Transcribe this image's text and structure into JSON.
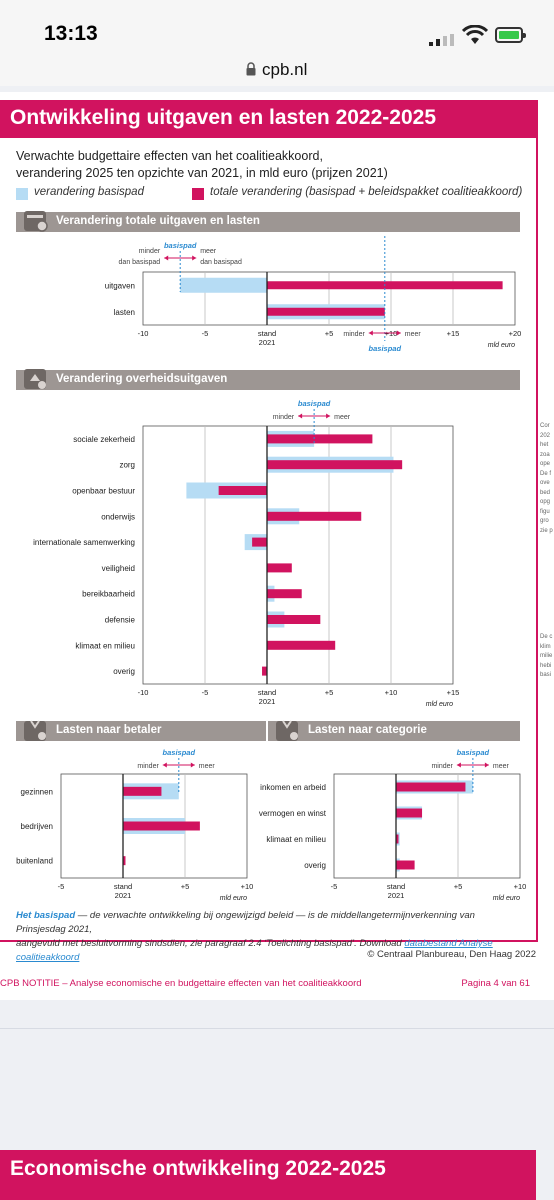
{
  "status_bar": {
    "time": "13:13"
  },
  "browser": {
    "url": "cpb.nl"
  },
  "doc": {
    "title": "Ontwikkeling uitgaven en lasten 2022-2025",
    "subtitle_line1": "Verwachte budgettaire effecten van het coalitieakkoord,",
    "subtitle_line2": "verandering 2025 ten opzichte van 2021, in mld euro (prijzen 2021)",
    "legend_basispad": "verandering basispad",
    "legend_totaal": "totale verandering (basispad + beleidspakket coalitieakkoord)",
    "colors": {
      "basispad": "#b6dcf4",
      "totaal": "#d1135f",
      "accent_blue": "#2a8ad0",
      "section_grey": "#9d9693"
    },
    "sections": {
      "s1": "Verandering totale uitgaven en lasten",
      "s2": "Verandering overheidsuitgaven",
      "s3": "Lasten naar betaler",
      "s4": "Lasten naar categorie"
    },
    "footnote_hl": "Het basispad",
    "footnote_text1": " — de verwachte ontwikkeling bij ongewijzigd beleid — is de middellangetermijnverkenning van Prinsjesdag 2021,",
    "footnote_text2": "aangevuld met besluitvorming sindsdien, zie paragraaf 2.4 ‘Toelichting basispad’. Download ",
    "footnote_link": "databestand Analyse coalitieakkoord",
    "copyright": "© Centraal Planbureau, Den Haag 2022",
    "footer_left": "CPB NOTITIE – Analyse economische en budgettaire effecten van het coalitieakkoord",
    "footer_right": "Pagina 4 van 61",
    "next_title": "Economische ontwikkeling 2022-2025",
    "side_text_1": [
      "Cor",
      "202",
      "het",
      "zoa",
      "ope",
      "De f",
      "ove",
      "bed",
      "opg",
      "figu",
      "gro",
      "zie p"
    ],
    "side_text_2": [
      "De c",
      "klim",
      "milie",
      "hebi",
      "basi"
    ]
  },
  "chart_labels": {
    "basispad": "basispad",
    "minder_dan": [
      "minder",
      "dan basispad"
    ],
    "meer_dan": [
      "meer",
      "dan basispad"
    ],
    "minder": "minder",
    "meer": "meer",
    "stand": [
      "stand",
      "2021"
    ],
    "unit": "mld euro"
  },
  "chart_data": [
    {
      "id": "totaal",
      "type": "bar",
      "orientation": "horizontal",
      "title": "Verandering totale uitgaven en lasten",
      "categories": [
        "uitgaven",
        "lasten"
      ],
      "series": [
        {
          "name": "verandering basispad",
          "values": [
            -7,
            9.5
          ]
        },
        {
          "name": "totale verandering (basispad + beleidspakket coalitieakkoord)",
          "values": [
            19,
            9.5
          ]
        }
      ],
      "xlim": [
        -10,
        20
      ],
      "xticks": [
        "-10",
        "-5",
        "stand 2021",
        "+5",
        "+10",
        "+15",
        "+20"
      ],
      "xlabel": "mld euro"
    },
    {
      "id": "overheidsuitgaven",
      "type": "bar",
      "orientation": "horizontal",
      "title": "Verandering overheidsuitgaven",
      "categories": [
        "sociale zekerheid",
        "zorg",
        "openbaar bestuur",
        "onderwijs",
        "internationale samenwerking",
        "veiligheid",
        "bereikbaarheid",
        "defensie",
        "klimaat en milieu",
        "overig"
      ],
      "series": [
        {
          "name": "verandering basispad",
          "values": [
            3.8,
            10.2,
            -6.5,
            2.6,
            -1.8,
            0,
            0.6,
            1.4,
            0,
            0
          ]
        },
        {
          "name": "totale verandering (basispad + beleidspakket coalitieakkoord)",
          "values": [
            8.5,
            10.9,
            -3.9,
            7.6,
            -1.2,
            2.0,
            2.8,
            4.3,
            5.5,
            -0.4
          ]
        }
      ],
      "xlim": [
        -10,
        15
      ],
      "xticks": [
        "-10",
        "-5",
        "stand 2021",
        "+5",
        "+10",
        "+15"
      ],
      "xlabel": "mld euro"
    },
    {
      "id": "betaler",
      "type": "bar",
      "orientation": "horizontal",
      "title": "Lasten naar betaler",
      "categories": [
        "gezinnen",
        "bedrijven",
        "buitenland"
      ],
      "series": [
        {
          "name": "verandering basispad",
          "values": [
            4.5,
            5.0,
            0
          ]
        },
        {
          "name": "totale verandering (basispad + beleidspakket coalitieakkoord)",
          "values": [
            3.1,
            6.2,
            0.2
          ]
        }
      ],
      "xlim": [
        -5,
        10
      ],
      "xticks": [
        "-5",
        "stand 2021",
        "+5",
        "+10"
      ],
      "xlabel": "mld euro"
    },
    {
      "id": "categorie",
      "type": "bar",
      "orientation": "horizontal",
      "title": "Lasten naar categorie",
      "categories": [
        "inkomen en arbeid",
        "vermogen en winst",
        "klimaat en milieu",
        "overig"
      ],
      "series": [
        {
          "name": "verandering basispad",
          "values": [
            6.2,
            2.1,
            0.3,
            0.3
          ]
        },
        {
          "name": "totale verandering (basispad + beleidspakket coalitieakkoord)",
          "values": [
            5.6,
            2.1,
            0.2,
            1.5
          ]
        }
      ],
      "xlim": [
        -5,
        10
      ],
      "xticks": [
        "-5",
        "stand 2021",
        "+5",
        "+10"
      ],
      "xlabel": "mld euro"
    }
  ]
}
